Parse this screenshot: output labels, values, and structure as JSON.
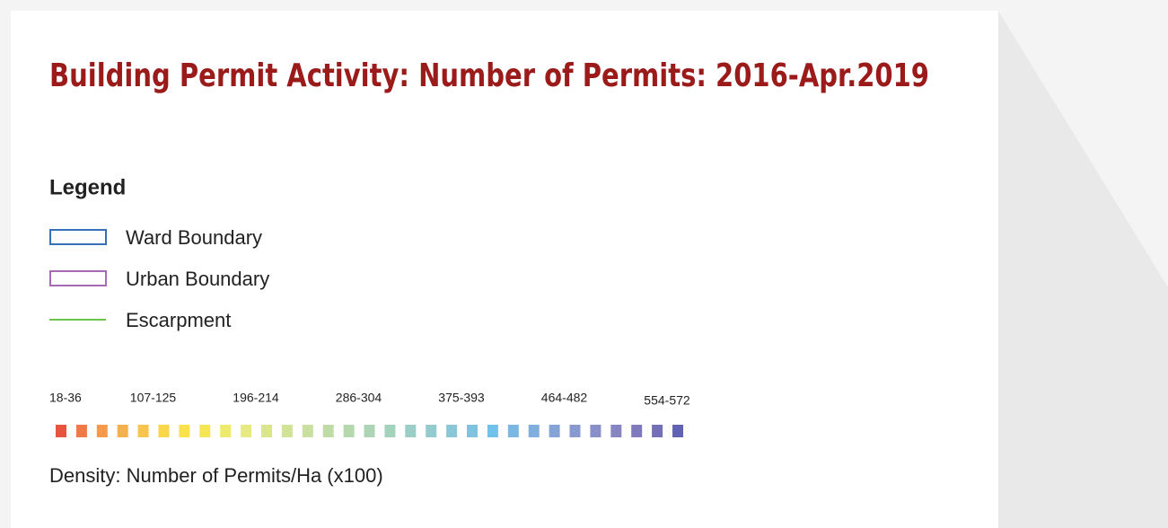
{
  "title": "Building Permit Activity: Number of Permits: 2016-Apr.2019",
  "legend": {
    "heading": "Legend",
    "items": [
      {
        "label": "Ward Boundary",
        "kind": "outline",
        "color": "#3a6fb5"
      },
      {
        "label": "Urban Boundary",
        "kind": "outline",
        "color": "#a56bb5"
      },
      {
        "label": "Escarpment",
        "kind": "line",
        "color": "#6cc24a"
      }
    ]
  },
  "scale": {
    "labels": [
      "18-36",
      "107-125",
      "196-214",
      "286-304",
      "375-393",
      "464-482",
      "554-572"
    ],
    "colors": [
      "#e8553c",
      "#ef7a45",
      "#f39a4c",
      "#f5b04f",
      "#f7c54f",
      "#f9d64a",
      "#fbe24a",
      "#f5e655",
      "#eeea6c",
      "#e6ea80",
      "#dbe68c",
      "#d2e397",
      "#c8df9f",
      "#bfdca6",
      "#b5d9ad",
      "#acd5b5",
      "#a3d2bd",
      "#9bcec6",
      "#93cbce",
      "#8ac7d8",
      "#7fc3e1",
      "#6fc2ea",
      "#7ab7e3",
      "#80aedd",
      "#85a4d6",
      "#889ad0",
      "#898fc8",
      "#8685c2",
      "#7f7bbd",
      "#7370b8",
      "#5f63b2"
    ],
    "caption": "Density: Number of Permits/Ha  (x100)"
  }
}
